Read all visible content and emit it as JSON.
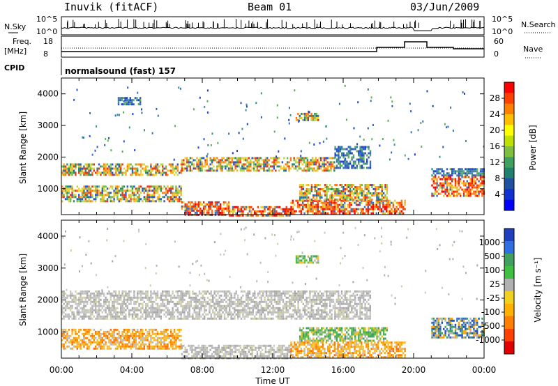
{
  "header": {
    "station": "Inuvik (fitACF)",
    "beam": "Beam 01",
    "date": "03/Jun/2009"
  },
  "summary_panels": {
    "nsky_label": "N.Sky",
    "nsky_ticks": [
      "10^5",
      "10^0"
    ],
    "nsearch_label": "N.Search",
    "nsearch_ticks": [
      "10^5",
      "10^0"
    ],
    "freq_label_1": "Freq.",
    "freq_label_2": "[MHz]",
    "freq_ticks": [
      "18",
      "8"
    ],
    "nave_label": "Nave",
    "nave_ticks": [
      "60",
      "0"
    ],
    "cpid_label": "CPID",
    "cpid_value": "normalsound (fast) 157"
  },
  "power_colorbar": {
    "title": "Power [dB]",
    "ticks": [
      "28",
      "24",
      "20",
      "16",
      "12",
      "8",
      "4"
    ],
    "colors": [
      "#ff0000",
      "#ff4000",
      "#ff8000",
      "#ffbf00",
      "#ffff00",
      "#c0e000",
      "#80c040",
      "#40a060",
      "#208070",
      "#2050a0",
      "#1030d0",
      "#0000ff"
    ]
  },
  "velocity_colorbar": {
    "title": "Velocity [m s⁻¹]",
    "ticks": [
      "1000",
      "500",
      "100",
      "25",
      "-25",
      "-100",
      "-500",
      "-1000"
    ],
    "colors": [
      "#1f3fbf",
      "#2f6fdf",
      "#3fa060",
      "#40c040",
      "#b0b0b0",
      "#f0d020",
      "#ffb000",
      "#ff8000",
      "#ff4000",
      "#e00000"
    ]
  },
  "chart_data": [
    {
      "type": "heatmap",
      "name": "power",
      "ylabel": "Slant Range [km]",
      "xlabel": "Time UT",
      "x_ticks": [
        "00:00",
        "04:00",
        "08:00",
        "12:00",
        "16:00",
        "20:00",
        "00:00"
      ],
      "y_ticks": [
        "1000",
        "2000",
        "3000",
        "4000"
      ],
      "xlim_hours": [
        0,
        24
      ],
      "ylim_km": [
        180,
        4500
      ],
      "bands": [
        {
          "t0": 0.0,
          "t1": 6.8,
          "r0": 1450,
          "r1": 1800,
          "pattern": "mixed"
        },
        {
          "t0": 6.8,
          "t1": 15.5,
          "r0": 1600,
          "r1": 2000,
          "pattern": "mixed"
        },
        {
          "t0": 15.5,
          "t1": 17.5,
          "r0": 1650,
          "r1": 2350,
          "pattern": "blue"
        },
        {
          "t0": 21.0,
          "t1": 24.0,
          "r0": 1450,
          "r1": 1650,
          "pattern": "blue"
        },
        {
          "t0": 0.0,
          "t1": 6.8,
          "r0": 600,
          "r1": 1100,
          "pattern": "mixed"
        },
        {
          "t0": 6.8,
          "t1": 9.5,
          "r0": 180,
          "r1": 600,
          "pattern": "hot"
        },
        {
          "t0": 9.5,
          "t1": 13.0,
          "r0": 180,
          "r1": 450,
          "pattern": "hot"
        },
        {
          "t0": 13.0,
          "t1": 19.5,
          "r0": 200,
          "r1": 650,
          "pattern": "hot"
        },
        {
          "t0": 13.5,
          "t1": 18.5,
          "r0": 650,
          "r1": 1150,
          "pattern": "mixed"
        },
        {
          "t0": 21.0,
          "t1": 24.0,
          "r0": 750,
          "r1": 1400,
          "pattern": "hot"
        },
        {
          "t0": 3.2,
          "t1": 4.5,
          "r0": 3650,
          "r1": 3900,
          "pattern": "blue"
        },
        {
          "t0": 13.3,
          "t1": 14.6,
          "r0": 3150,
          "r1": 3400,
          "pattern": "mixed"
        }
      ]
    },
    {
      "type": "heatmap",
      "name": "velocity",
      "ylabel": "Slant Range [km]",
      "xlabel": "Time UT",
      "x_ticks": [
        "00:00",
        "04:00",
        "08:00",
        "12:00",
        "16:00",
        "20:00",
        "00:00"
      ],
      "y_ticks": [
        "1000",
        "2000",
        "3000",
        "4000"
      ],
      "xlim_hours": [
        0,
        24
      ],
      "ylim_km": [
        180,
        4500
      ],
      "bands": [
        {
          "t0": 0.0,
          "t1": 17.5,
          "r0": 1400,
          "r1": 2300,
          "pattern": "grey"
        },
        {
          "t0": 0.0,
          "t1": 6.8,
          "r0": 500,
          "r1": 1100,
          "pattern": "orange"
        },
        {
          "t0": 6.8,
          "t1": 13.0,
          "r0": 200,
          "r1": 600,
          "pattern": "grey"
        },
        {
          "t0": 13.0,
          "t1": 19.5,
          "r0": 200,
          "r1": 700,
          "pattern": "orange"
        },
        {
          "t0": 13.5,
          "t1": 18.5,
          "r0": 700,
          "r1": 1150,
          "pattern": "green"
        },
        {
          "t0": 21.0,
          "t1": 24.0,
          "r0": 800,
          "r1": 1450,
          "pattern": "bluegreen"
        },
        {
          "t0": 13.3,
          "t1": 14.6,
          "r0": 3150,
          "r1": 3400,
          "pattern": "green"
        }
      ]
    }
  ]
}
